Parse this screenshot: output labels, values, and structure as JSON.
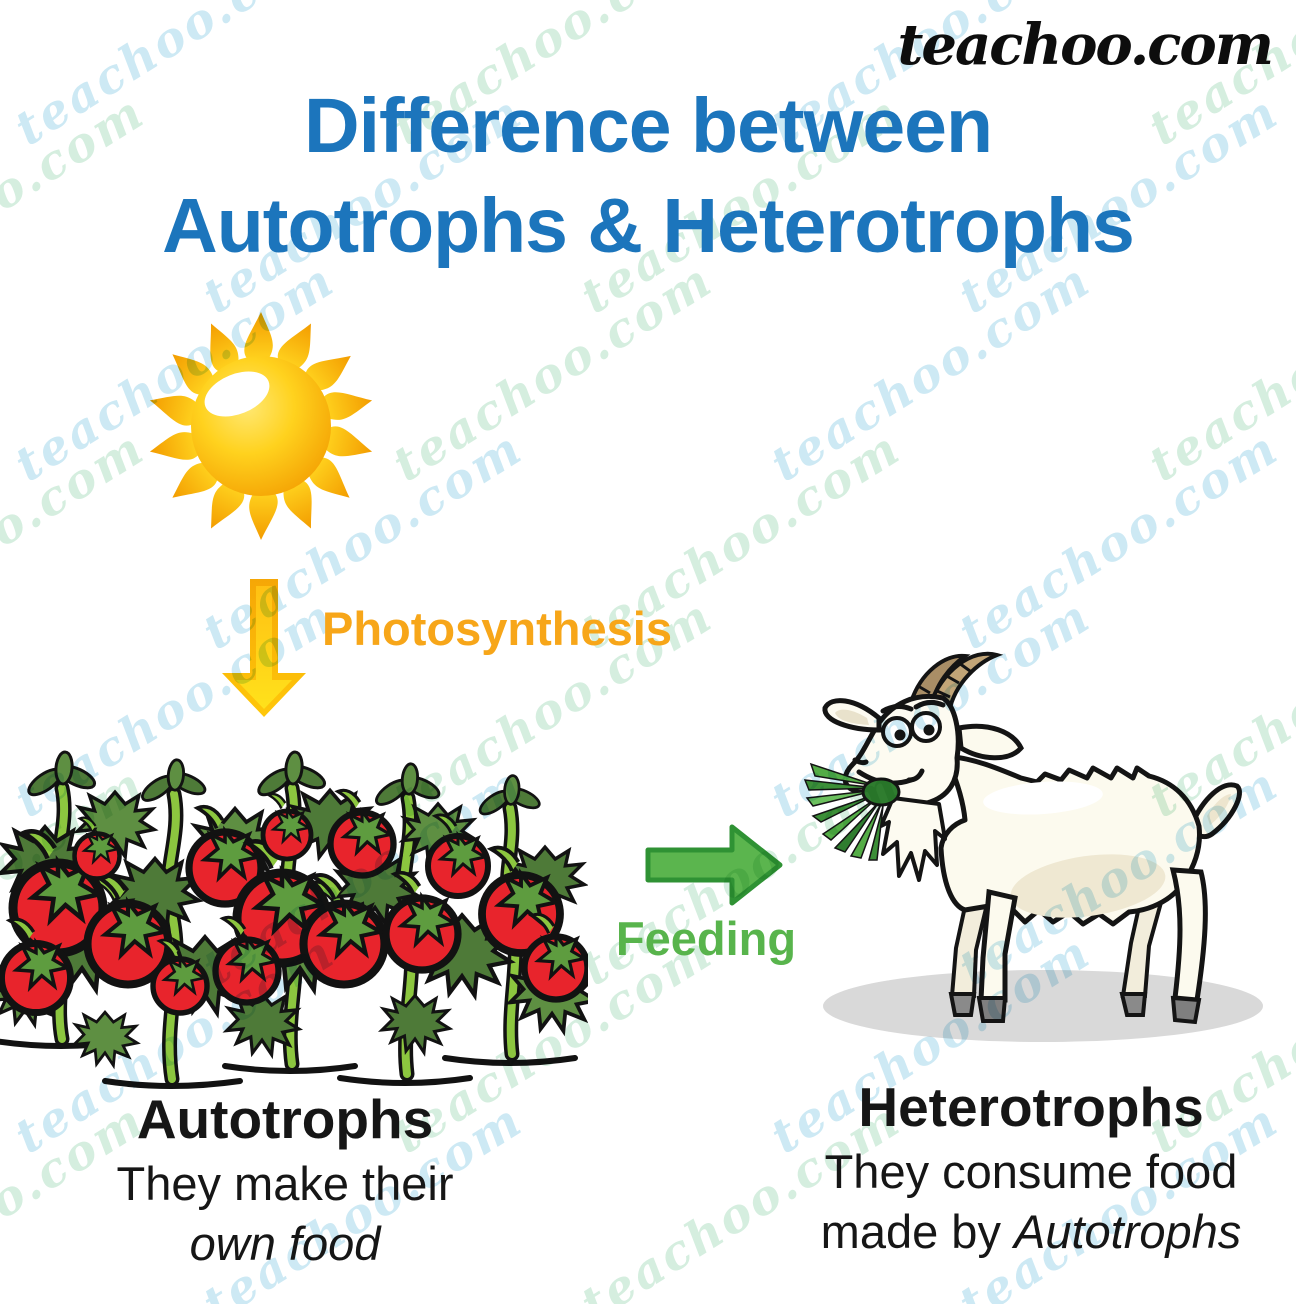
{
  "brand": {
    "logo_text": "teachoo.com",
    "color": "#0d0d0d"
  },
  "watermark": {
    "text": "teachoo.com",
    "color_blue": "#cde9f4",
    "color_green": "#d5eedf"
  },
  "title": {
    "line1": "Difference between",
    "line2": "Autotrophs & Heterotrophs",
    "color": "#1C75BC"
  },
  "flow": {
    "photosynthesis_label": "Photosynthesis",
    "photosynthesis_color": "#F7A619",
    "feeding_label": "Feeding",
    "feeding_color": "#58B44C"
  },
  "autotrophs": {
    "heading": "Autotrophs",
    "line1": "They make their",
    "line2_italic": "own food"
  },
  "heterotrophs": {
    "heading": "Heterotrophs",
    "line1": "They consume food",
    "line2_prefix": "made by ",
    "line2_italic": "Autotrophs"
  },
  "icons": {
    "sun": "sun-illustration",
    "down_arrow": "yellow-down-arrow",
    "tomato_field": "tomato-plants-illustration",
    "right_arrow": "green-right-arrow",
    "goat": "goat-eating-grass-illustration"
  },
  "palette": {
    "sun_yellow": "#FFD21E",
    "sun_orange": "#F39C00",
    "tomato_red": "#E8242C",
    "stem_green": "#8CC63F",
    "leaf_green": "#4E7A38",
    "arrow_green": "#5BB54E",
    "goat_cream": "#FCFAEE",
    "shadow_gray": "#D9D9D9"
  }
}
